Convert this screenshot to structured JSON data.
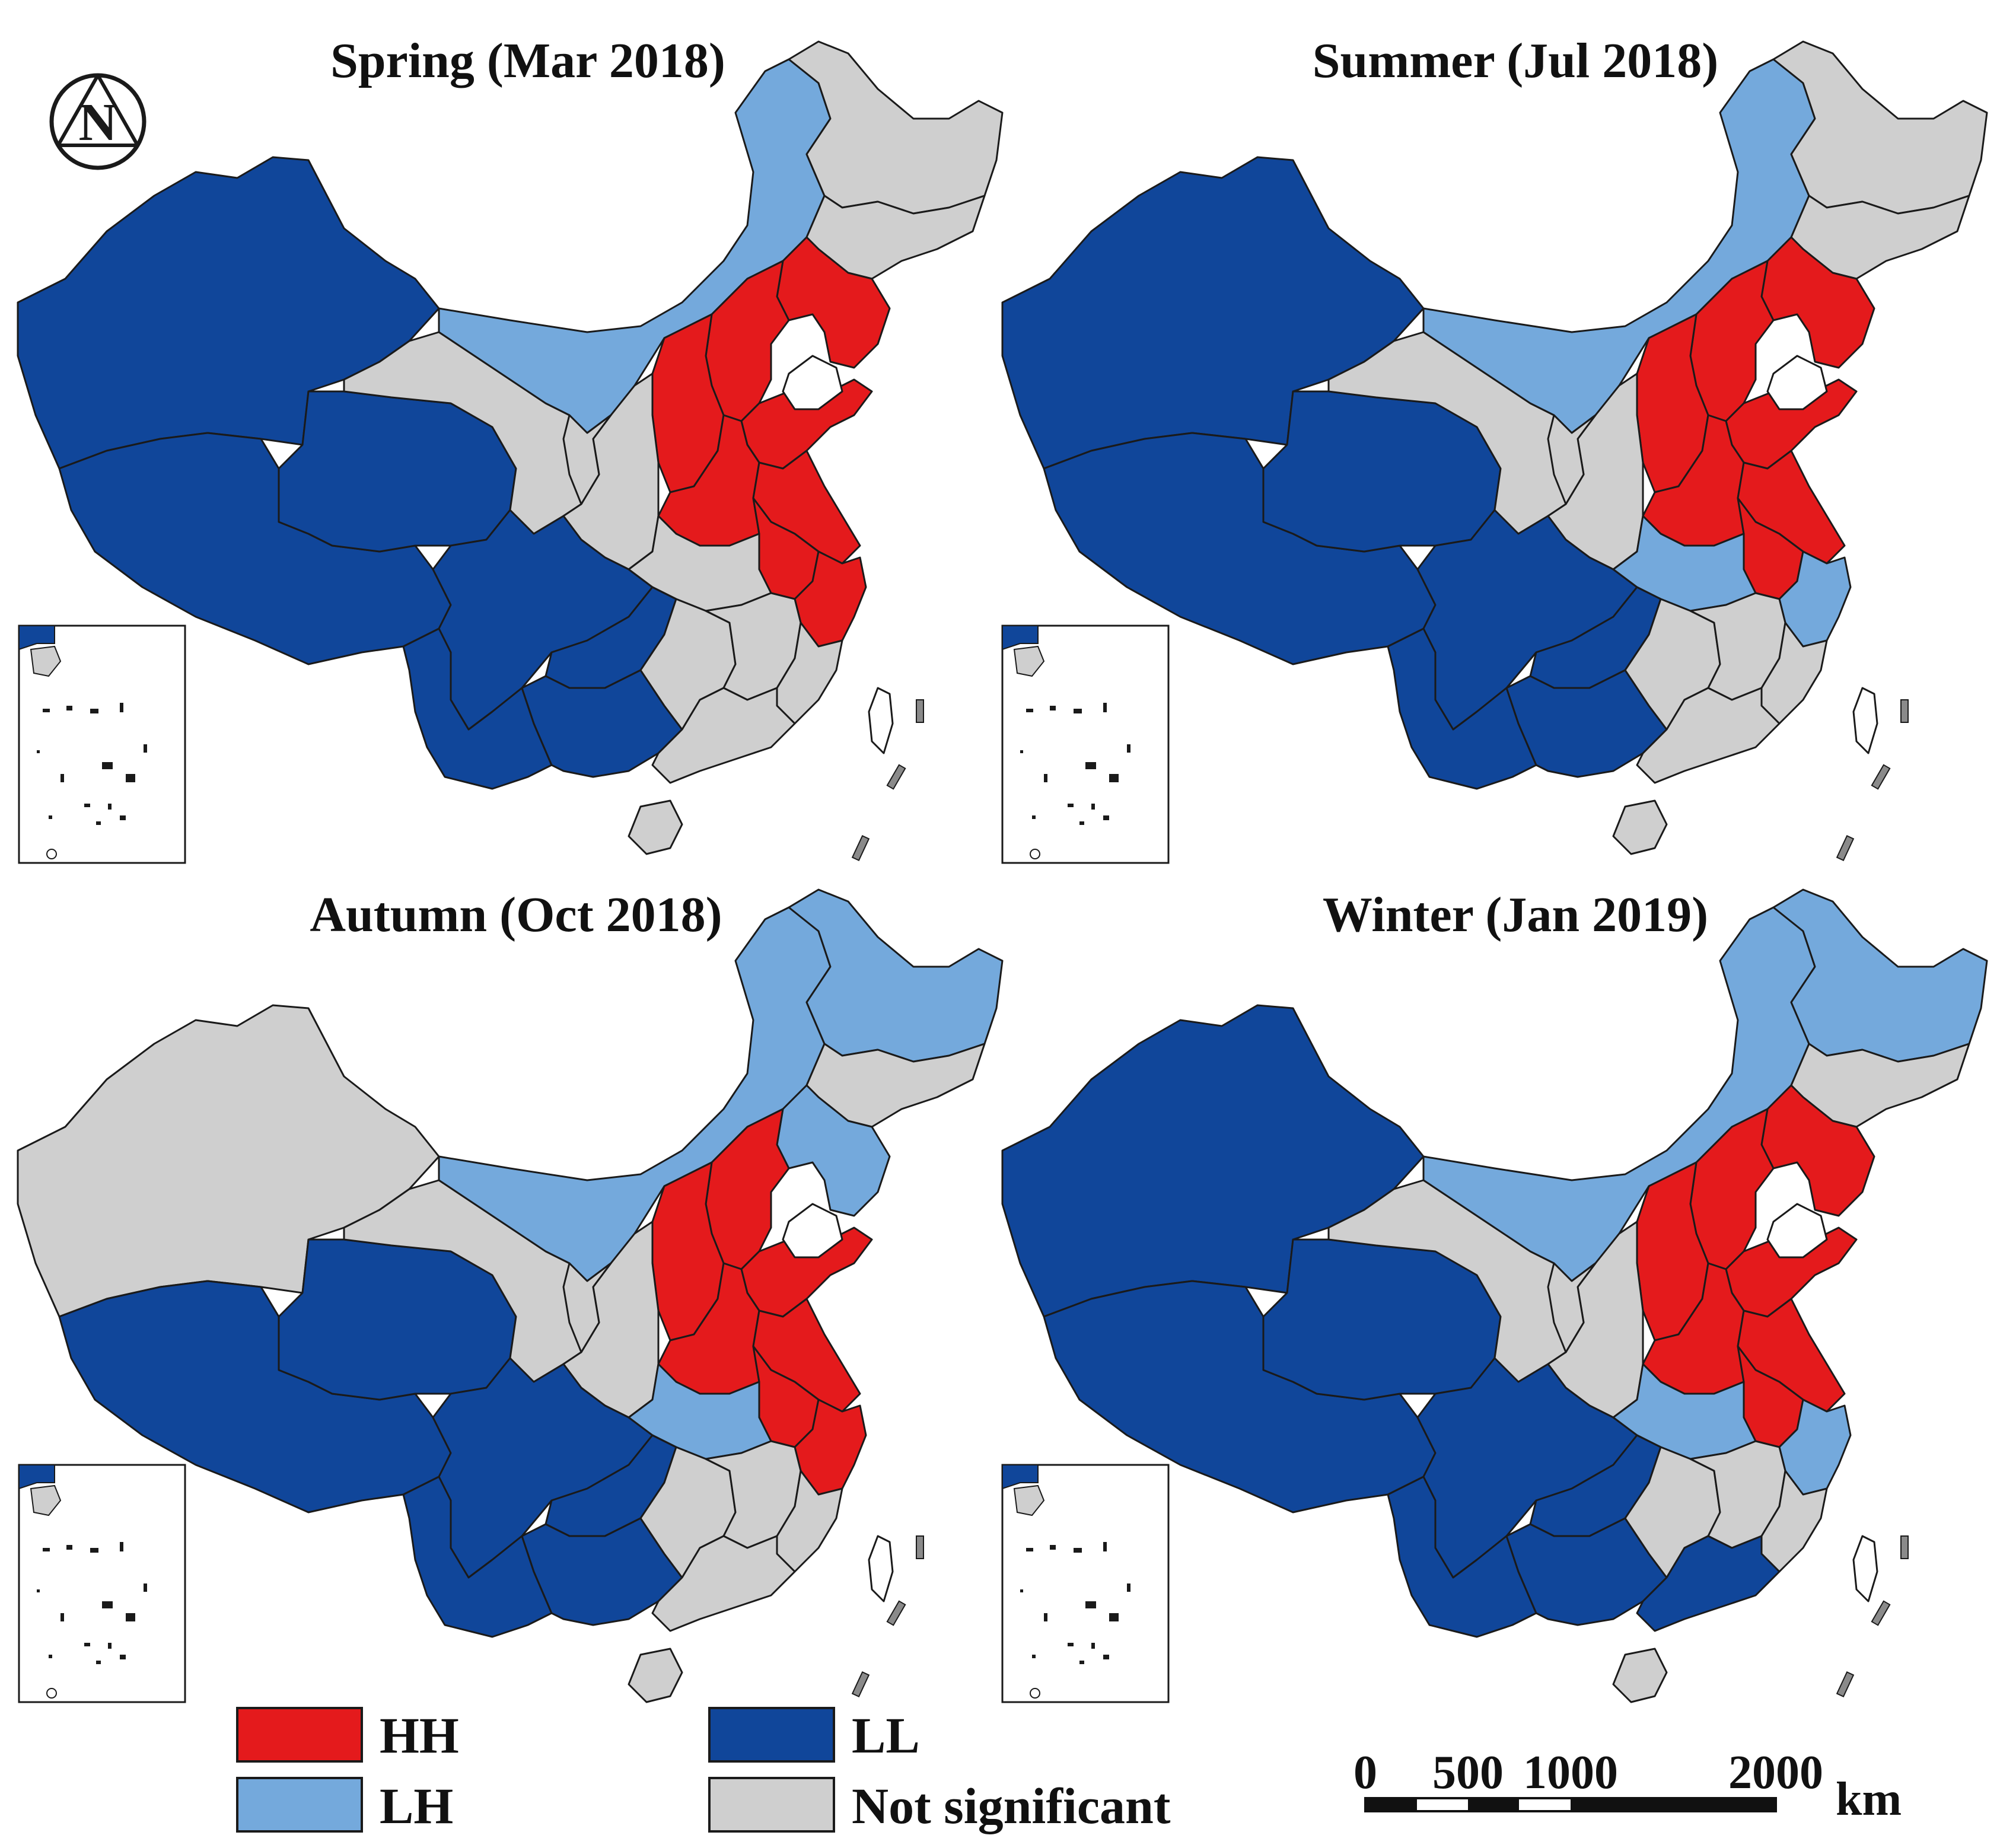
{
  "figure": {
    "panels": [
      {
        "title": "Spring (Mar 2018)",
        "regions": {
          "xinjiang": "LL",
          "tibet": "LL",
          "qinghai": "LL",
          "gansu": "NS",
          "inner_mongolia": "LH",
          "heilongjiang": "NS",
          "jilin": "NS",
          "liaoning": "HH",
          "beijing_tianjin_hebei": "HH",
          "shanxi": "HH",
          "shandong": "HH",
          "henan": "HH",
          "jiangsu": "HH",
          "anhui": "HH",
          "zhejiang": "HH",
          "shaanxi": "NS",
          "ningxia": "NS",
          "sichuan_chongqing": "LL",
          "yunnan": "LL",
          "guizhou": "LL",
          "guangxi": "LL",
          "hubei": "NS",
          "hunan": "NS",
          "jiangxi": "NS",
          "fujian": "NS",
          "guangdong": "NS",
          "hainan": "NS"
        }
      },
      {
        "title": "Summer (Jul 2018)",
        "regions": {
          "xinjiang": "LL",
          "tibet": "LL",
          "qinghai": "LL",
          "gansu": "NS",
          "inner_mongolia": "LH",
          "heilongjiang": "NS",
          "jilin": "NS",
          "liaoning": "HH",
          "beijing_tianjin_hebei": "HH",
          "shanxi": "HH",
          "shandong": "HH",
          "henan": "HH",
          "jiangsu": "HH",
          "anhui": "HH",
          "zhejiang": "LH",
          "shaanxi": "NS",
          "ningxia": "NS",
          "sichuan_chongqing": "LL",
          "yunnan": "LL",
          "guizhou": "LL",
          "guangxi": "LL",
          "hubei": "LH",
          "hunan": "NS",
          "jiangxi": "NS",
          "fujian": "NS",
          "guangdong": "NS",
          "hainan": "NS"
        }
      },
      {
        "title": "Autumn (Oct 2018)",
        "regions": {
          "xinjiang": "NS",
          "tibet": "LL",
          "qinghai": "LL",
          "gansu": "NS",
          "inner_mongolia": "LH",
          "heilongjiang": "LH",
          "jilin": "NS",
          "liaoning": "LH",
          "beijing_tianjin_hebei": "HH",
          "shanxi": "HH",
          "shandong": "HH",
          "henan": "HH",
          "jiangsu": "HH",
          "anhui": "HH",
          "zhejiang": "HH",
          "shaanxi": "NS",
          "ningxia": "NS",
          "sichuan_chongqing": "LL",
          "yunnan": "LL",
          "guizhou": "LL",
          "guangxi": "LL",
          "hubei": "LH",
          "hunan": "NS",
          "jiangxi": "NS",
          "fujian": "NS",
          "guangdong": "NS",
          "hainan": "NS"
        }
      },
      {
        "title": "Winter (Jan 2019)",
        "regions": {
          "xinjiang": "LL",
          "tibet": "LL",
          "qinghai": "LL",
          "gansu": "NS",
          "inner_mongolia": "LH",
          "heilongjiang": "LH",
          "jilin": "NS",
          "liaoning": "HH",
          "beijing_tianjin_hebei": "HH",
          "shanxi": "HH",
          "shandong": "HH",
          "henan": "HH",
          "jiangsu": "HH",
          "anhui": "HH",
          "zhejiang": "LH",
          "shaanxi": "NS",
          "ningxia": "NS",
          "sichuan_chongqing": "LL",
          "yunnan": "LL",
          "guizhou": "LL",
          "guangxi": "LL",
          "hubei": "LH",
          "hunan": "NS",
          "jiangxi": "NS",
          "fujian": "NS",
          "guangdong": "LL",
          "hainan": "NS"
        }
      }
    ],
    "north_arrow": {
      "label": "N",
      "icon": "north-arrow-icon"
    },
    "legend": {
      "items": [
        {
          "key": "HH",
          "label": "HH",
          "color": "#e41a1c"
        },
        {
          "key": "LL",
          "label": "LL",
          "color": "#10469a"
        },
        {
          "key": "LH",
          "label": "LH",
          "color": "#74a9dc"
        },
        {
          "key": "NS",
          "label": "Not significant",
          "color": "#cfcfcf"
        }
      ]
    },
    "scale_bar": {
      "ticks": [
        "0",
        "500",
        "1000",
        "2000"
      ],
      "unit": "km"
    },
    "colors": {
      "HH": "#e41a1c",
      "LH": "#74a9dc",
      "LL": "#10469a",
      "NS": "#cfcfcf",
      "island": "#ffffff",
      "stroke": "#1a1a1a"
    }
  }
}
